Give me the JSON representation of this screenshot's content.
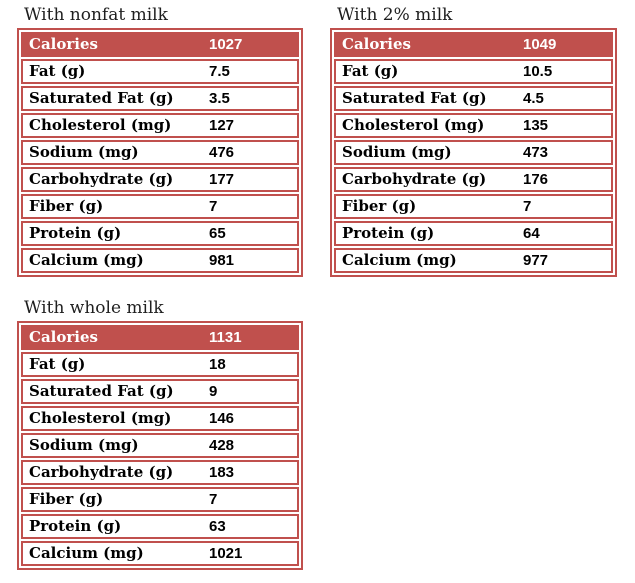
{
  "accent_color": "#c0504d",
  "tables": [
    {
      "title": "With nonfat milk",
      "header": {
        "label": "Calories",
        "value": "1027"
      },
      "rows": [
        {
          "label": "Fat (g)",
          "value": "7.5"
        },
        {
          "label": "Saturated Fat (g)",
          "value": "3.5"
        },
        {
          "label": "Cholesterol (mg)",
          "value": "127"
        },
        {
          "label": "Sodium (mg)",
          "value": "476"
        },
        {
          "label": "Carbohydrate (g)",
          "value": "177"
        },
        {
          "label": "Fiber (g)",
          "value": "7"
        },
        {
          "label": "Protein (g)",
          "value": "65"
        },
        {
          "label": "Calcium (mg)",
          "value": "981"
        }
      ]
    },
    {
      "title": "With 2% milk",
      "header": {
        "label": "Calories",
        "value": "1049"
      },
      "rows": [
        {
          "label": "Fat (g)",
          "value": "10.5"
        },
        {
          "label": "Saturated Fat (g)",
          "value": "4.5"
        },
        {
          "label": "Cholesterol (mg)",
          "value": "135"
        },
        {
          "label": "Sodium (mg)",
          "value": "473"
        },
        {
          "label": "Carbohydrate (g)",
          "value": "176"
        },
        {
          "label": "Fiber (g)",
          "value": "7"
        },
        {
          "label": "Protein (g)",
          "value": "64"
        },
        {
          "label": "Calcium (mg)",
          "value": "977"
        }
      ]
    },
    {
      "title": "With whole milk",
      "header": {
        "label": "Calories",
        "value": "1131"
      },
      "rows": [
        {
          "label": "Fat (g)",
          "value": "18"
        },
        {
          "label": "Saturated Fat (g)",
          "value": "9"
        },
        {
          "label": "Cholesterol (mg)",
          "value": "146"
        },
        {
          "label": "Sodium (mg)",
          "value": "428"
        },
        {
          "label": "Carbohydrate (g)",
          "value": "183"
        },
        {
          "label": "Fiber (g)",
          "value": "7"
        },
        {
          "label": "Protein (g)",
          "value": "63"
        },
        {
          "label": "Calcium (mg)",
          "value": "1021"
        }
      ]
    }
  ]
}
